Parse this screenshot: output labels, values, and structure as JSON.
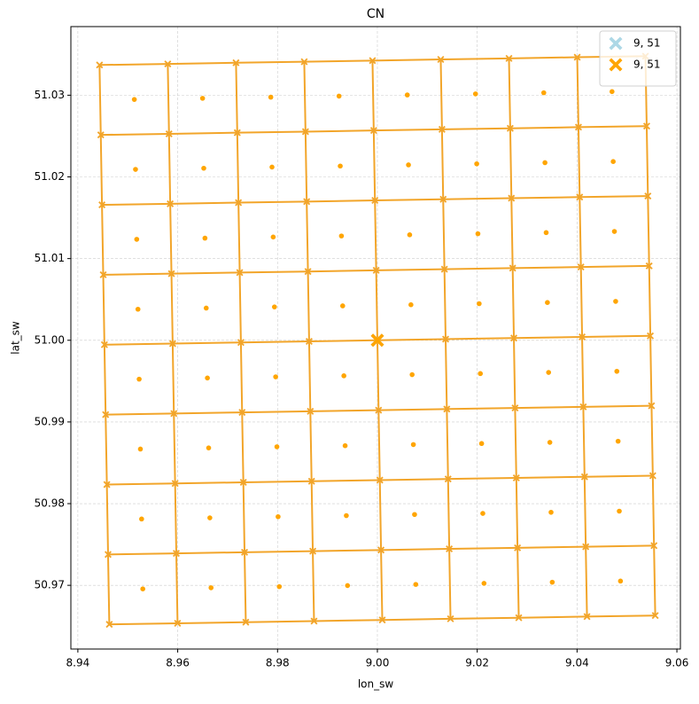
{
  "chart_data": {
    "type": "scatter",
    "title": "CN",
    "x_label": "lon_sw",
    "y_label": "lat_sw",
    "xlim": [
      8.9386,
      9.0607
    ],
    "ylim": [
      50.9622,
      51.0384
    ],
    "xticks": [
      8.94,
      8.96,
      8.98,
      {
        "value": 9,
        "label": "9.00"
      },
      9.02,
      9.04,
      9.06
    ],
    "yticks": [
      50.97,
      50.98,
      50.99,
      {
        "value": 51,
        "label": "51.00"
      },
      51.01,
      51.02,
      51.03
    ],
    "grid": true,
    "legend": "upper right",
    "corners": {
      "color": "#f2a52a",
      "lon": [
        [
          8.94434,
          8.95801,
          8.97168,
          8.98535,
          8.99902,
          9.01269,
          9.02636,
          9.04003,
          9.0537
        ],
        [
          8.94459,
          8.95826,
          8.97193,
          8.9856,
          8.99927,
          9.01294,
          9.02661,
          9.04028,
          9.05395
        ],
        [
          8.94483,
          8.9585,
          8.97217,
          8.98584,
          8.99951,
          9.01318,
          9.02685,
          9.04052,
          9.05419
        ],
        [
          8.94508,
          8.95875,
          8.97242,
          8.98609,
          8.99976,
          9.01343,
          9.0271,
          9.04077,
          9.05444
        ],
        [
          8.94532,
          8.95899,
          8.97266,
          8.98633,
          9.0,
          9.01367,
          9.02734,
          9.04101,
          9.05468
        ],
        [
          8.94556,
          8.95923,
          8.9729,
          8.98657,
          9.00024,
          9.01391,
          9.02758,
          9.04125,
          9.05492
        ],
        [
          8.94581,
          8.95948,
          8.97315,
          8.98682,
          9.00049,
          9.01416,
          9.02783,
          9.0415,
          9.05517
        ],
        [
          8.94605,
          8.95972,
          8.97339,
          8.98706,
          9.00073,
          9.0144,
          9.02807,
          9.04174,
          9.05541
        ],
        [
          8.9463,
          8.95997,
          8.97364,
          8.98731,
          9.00098,
          9.01465,
          9.02832,
          9.04199,
          9.05566
        ]
      ],
      "lat": [
        [
          51.0337,
          51.03383,
          51.03397,
          51.0341,
          51.03424,
          51.03438,
          51.03451,
          51.03465,
          51.03478
        ],
        [
          51.02514,
          51.02527,
          51.02541,
          51.02554,
          51.02568,
          51.02582,
          51.02595,
          51.02609,
          51.02622
        ],
        [
          51.01658,
          51.01671,
          51.01685,
          51.01698,
          51.01712,
          51.01726,
          51.01739,
          51.01753,
          51.01766
        ],
        [
          51.00802,
          51.00815,
          51.00829,
          51.00842,
          51.00856,
          51.0087,
          51.00883,
          51.00897,
          51.0091
        ],
        [
          50.99946,
          50.99959,
          50.99973,
          50.99986,
          51.0,
          51.00014,
          51.00027,
          51.00041,
          51.00054
        ],
        [
          50.9909,
          50.99103,
          50.99117,
          50.9913,
          50.99144,
          50.99158,
          50.99171,
          50.99185,
          50.99198
        ],
        [
          50.98234,
          50.98247,
          50.98261,
          50.98274,
          50.98288,
          50.98302,
          50.98315,
          50.98329,
          50.98342
        ],
        [
          50.97378,
          50.97391,
          50.97405,
          50.97418,
          50.97432,
          50.97446,
          50.97459,
          50.97473,
          50.97486
        ],
        [
          50.96522,
          50.96535,
          50.96549,
          50.96562,
          50.96576,
          50.9659,
          50.96603,
          50.96617,
          50.9663
        ]
      ]
    },
    "centers": {
      "color": "#ffa500",
      "lon": [
        [
          8.95131,
          8.96498,
          8.97865,
          8.99232,
          9.00599,
          9.01966,
          9.03333,
          9.047
        ],
        [
          8.95155,
          8.96522,
          8.97889,
          8.99256,
          9.00623,
          9.0199,
          9.03357,
          9.04724
        ],
        [
          8.95179,
          8.96546,
          8.97913,
          8.9928,
          9.00647,
          9.02014,
          9.03381,
          9.04748
        ],
        [
          8.95204,
          8.96571,
          8.97938,
          8.99305,
          9.00672,
          9.02039,
          9.03406,
          9.04773
        ],
        [
          8.95228,
          8.96595,
          8.97962,
          8.99329,
          9.00696,
          9.02063,
          9.0343,
          9.04797
        ],
        [
          8.95253,
          8.9662,
          8.97987,
          8.99354,
          9.00721,
          9.02088,
          9.03455,
          9.04822
        ],
        [
          8.95277,
          8.96644,
          8.98011,
          8.99378,
          9.00745,
          9.02112,
          9.03479,
          9.04846
        ],
        [
          8.95301,
          8.96668,
          8.98035,
          8.99402,
          9.00769,
          9.02136,
          9.03503,
          9.0487
        ]
      ],
      "lat": [
        [
          51.02948,
          51.02962,
          51.02976,
          51.02989,
          51.03003,
          51.03016,
          51.0303,
          51.03044
        ],
        [
          51.02092,
          51.02106,
          51.0212,
          51.02133,
          51.02147,
          51.0216,
          51.02174,
          51.02188
        ],
        [
          51.01236,
          51.0125,
          51.01264,
          51.01277,
          51.01291,
          51.01304,
          51.01318,
          51.01332
        ],
        [
          51.0038,
          51.00394,
          51.00408,
          51.00421,
          51.00435,
          51.00448,
          51.00462,
          51.00476
        ],
        [
          50.99524,
          50.99538,
          50.99552,
          50.99565,
          50.99579,
          50.99592,
          50.99606,
          50.9962
        ],
        [
          50.98668,
          50.98682,
          50.98696,
          50.98709,
          50.98723,
          50.98736,
          50.9875,
          50.98764
        ],
        [
          50.97812,
          50.97826,
          50.9784,
          50.97853,
          50.97867,
          50.9788,
          50.97894,
          50.97908
        ],
        [
          50.96956,
          50.9697,
          50.96984,
          50.96997,
          50.97011,
          50.97024,
          50.97038,
          50.97052
        ]
      ]
    },
    "series": [
      {
        "name": "9, 51",
        "color": "#add8e6",
        "x": [
          9
        ],
        "y": [
          51
        ]
      },
      {
        "name": "9, 51",
        "color": "#ffa500",
        "x": [
          9
        ],
        "y": [
          51
        ]
      }
    ]
  }
}
